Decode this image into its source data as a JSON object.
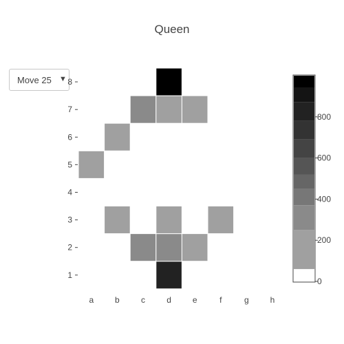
{
  "chart_data": {
    "type": "heatmap",
    "title": "Queen",
    "x_categories": [
      "a",
      "b",
      "c",
      "d",
      "e",
      "f",
      "g",
      "h"
    ],
    "y_categories": [
      "1",
      "2",
      "3",
      "4",
      "5",
      "6",
      "7",
      "8"
    ],
    "z": [
      [
        0,
        0,
        0,
        850,
        0,
        0,
        0,
        0
      ],
      [
        0,
        0,
        280,
        300,
        190,
        0,
        0,
        0
      ],
      [
        0,
        190,
        0,
        190,
        0,
        190,
        0,
        0
      ],
      [
        0,
        0,
        0,
        0,
        0,
        0,
        0,
        0
      ],
      [
        190,
        0,
        0,
        0,
        0,
        0,
        0,
        0
      ],
      [
        0,
        190,
        0,
        0,
        0,
        0,
        0,
        0
      ],
      [
        0,
        0,
        280,
        190,
        190,
        0,
        0,
        0
      ],
      [
        0,
        0,
        0,
        1000,
        0,
        0,
        0,
        0
      ]
    ],
    "colorbar": {
      "zmin": 0,
      "zmax": 1000,
      "ticks": [
        0,
        200,
        400,
        600,
        800
      ],
      "bands": [
        {
          "from": 0,
          "to": 60,
          "color": "#ffffff"
        },
        {
          "from": 60,
          "to": 250,
          "color": "#a0a0a0"
        },
        {
          "from": 250,
          "to": 370,
          "color": "#8a8a8a"
        },
        {
          "from": 370,
          "to": 450,
          "color": "#777777"
        },
        {
          "from": 450,
          "to": 520,
          "color": "#666666"
        },
        {
          "from": 520,
          "to": 600,
          "color": "#555555"
        },
        {
          "from": 600,
          "to": 690,
          "color": "#444444"
        },
        {
          "from": 690,
          "to": 780,
          "color": "#333333"
        },
        {
          "from": 780,
          "to": 870,
          "color": "#222222"
        },
        {
          "from": 870,
          "to": 940,
          "color": "#141414"
        },
        {
          "from": 940,
          "to": 1000,
          "color": "#000000"
        }
      ]
    },
    "grid": false
  },
  "controls": {
    "move_dropdown": {
      "selected": "Move 25"
    }
  }
}
